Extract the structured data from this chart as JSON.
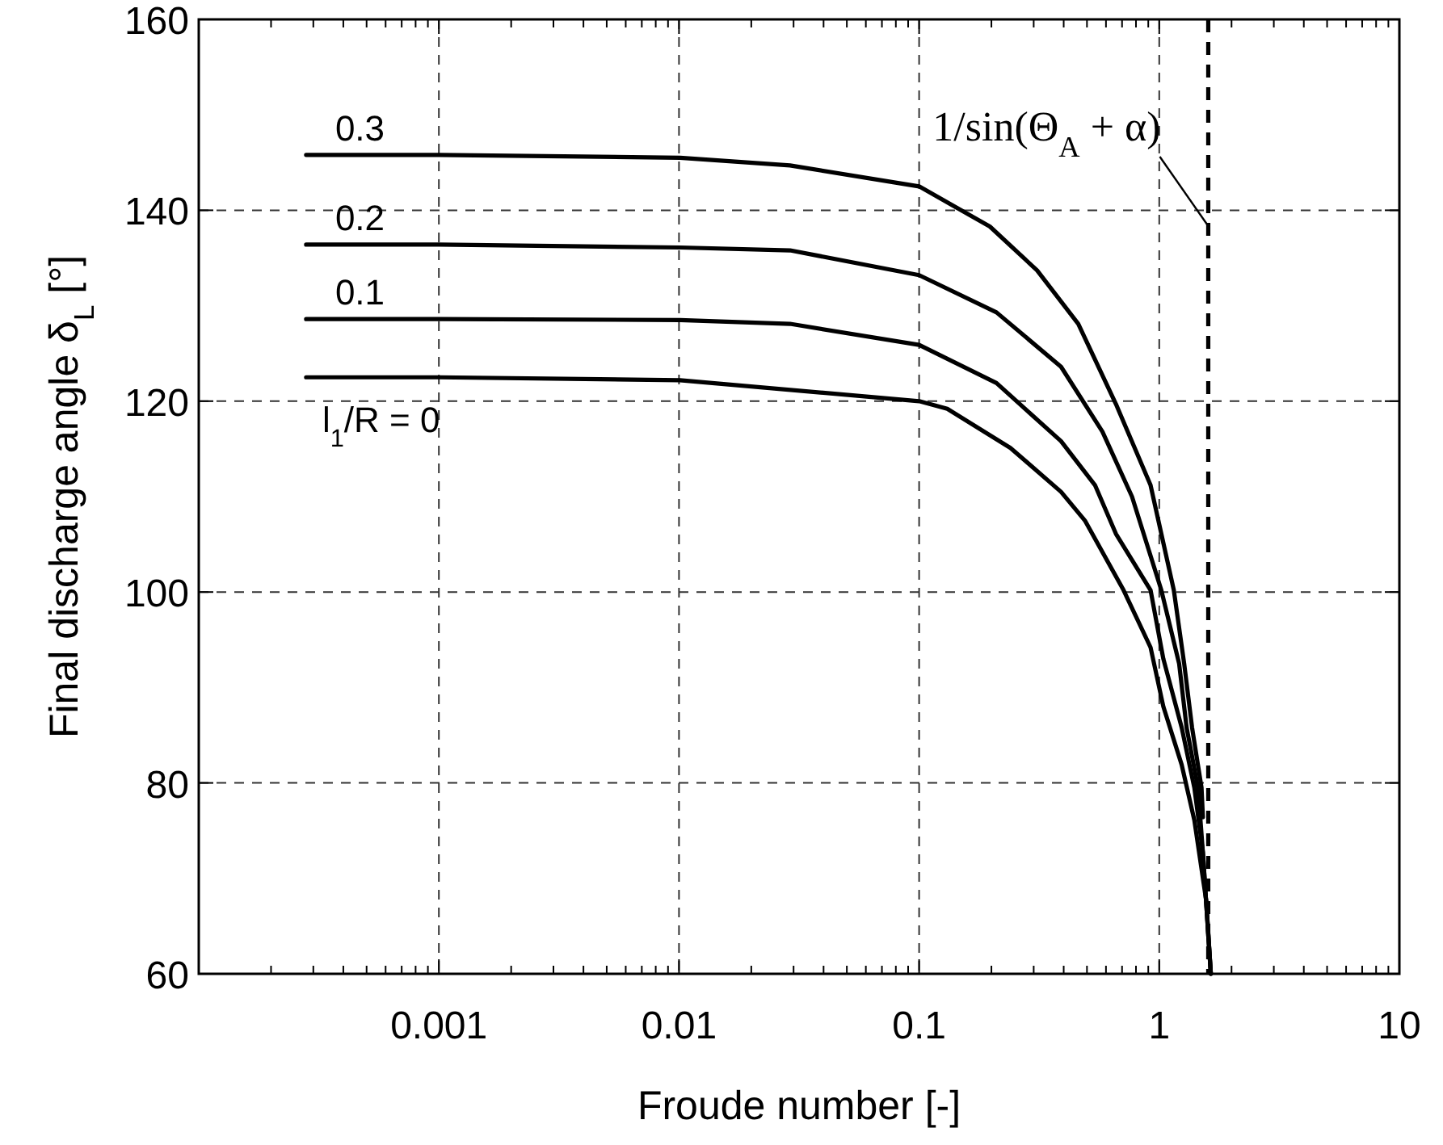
{
  "chart_data": {
    "type": "line",
    "xlabel": "Froude number [-]",
    "ylabel": "Final discharge angle δ$_{L}$ [°]",
    "log": "x",
    "xlim": [
      0.0001,
      10
    ],
    "xticks": [
      0.001,
      0.01,
      0.1,
      1,
      10
    ],
    "ylim": [
      60,
      160
    ],
    "yticks": [
      60,
      80,
      100,
      120,
      140,
      160
    ],
    "grid": true,
    "marker": "none",
    "line_style": "solid",
    "series": [
      {
        "name": "l$_{1}$/R = 0",
        "color": "#000000",
        "x": [
          0.00028,
          0.001,
          0.0101,
          0.1,
          0.131,
          0.24,
          0.39,
          0.49,
          0.71,
          0.92,
          1.04,
          1.24,
          1.4,
          1.57,
          1.64
        ],
        "values": [
          122.5,
          122.5,
          122.2,
          120.0,
          119.2,
          115.1,
          110.5,
          107.5,
          100.2,
          94.2,
          88.0,
          81.9,
          76.1,
          67.6,
          60
        ]
      },
      {
        "name": "0.1",
        "color": "#000000",
        "x": [
          0.00028,
          0.001,
          0.0101,
          0.029,
          0.1,
          0.21,
          0.39,
          0.54,
          0.66,
          0.92,
          1.04,
          1.24,
          1.4,
          1.52,
          1.64
        ],
        "values": [
          128.6,
          128.6,
          128.5,
          128.1,
          125.9,
          121.9,
          115.8,
          111.2,
          106.1,
          100.2,
          93.0,
          85.8,
          79.5,
          72.7,
          60
        ]
      },
      {
        "name": "0.2",
        "color": "#000000",
        "x": [
          0.00028,
          0.001,
          0.0101,
          0.029,
          0.1,
          0.21,
          0.39,
          0.58,
          0.77,
          1.02,
          1.21,
          1.3,
          1.45,
          1.52,
          1.64
        ],
        "values": [
          136.4,
          136.4,
          136.1,
          135.8,
          133.2,
          129.3,
          123.6,
          116.8,
          110.0,
          100.2,
          92.5,
          85.8,
          79.5,
          72.7,
          60
        ]
      },
      {
        "name": "0.3",
        "color": "#000000",
        "x": [
          0.00028,
          0.001,
          0.0101,
          0.029,
          0.1,
          0.197,
          0.31,
          0.46,
          0.66,
          0.92,
          1.15,
          1.27,
          1.37,
          1.5,
          1.52
        ],
        "values": [
          145.8,
          145.8,
          145.5,
          144.7,
          142.5,
          138.3,
          133.7,
          128.1,
          119.7,
          111.2,
          100.2,
          92.5,
          85.8,
          79.5,
          76.4
        ]
      }
    ],
    "ref_lines": [
      {
        "axis": "x",
        "value": 1.6,
        "label": "1/sin(Θ$_{A}$ + α)",
        "line_style": "dashed",
        "color": "#000000"
      }
    ]
  }
}
